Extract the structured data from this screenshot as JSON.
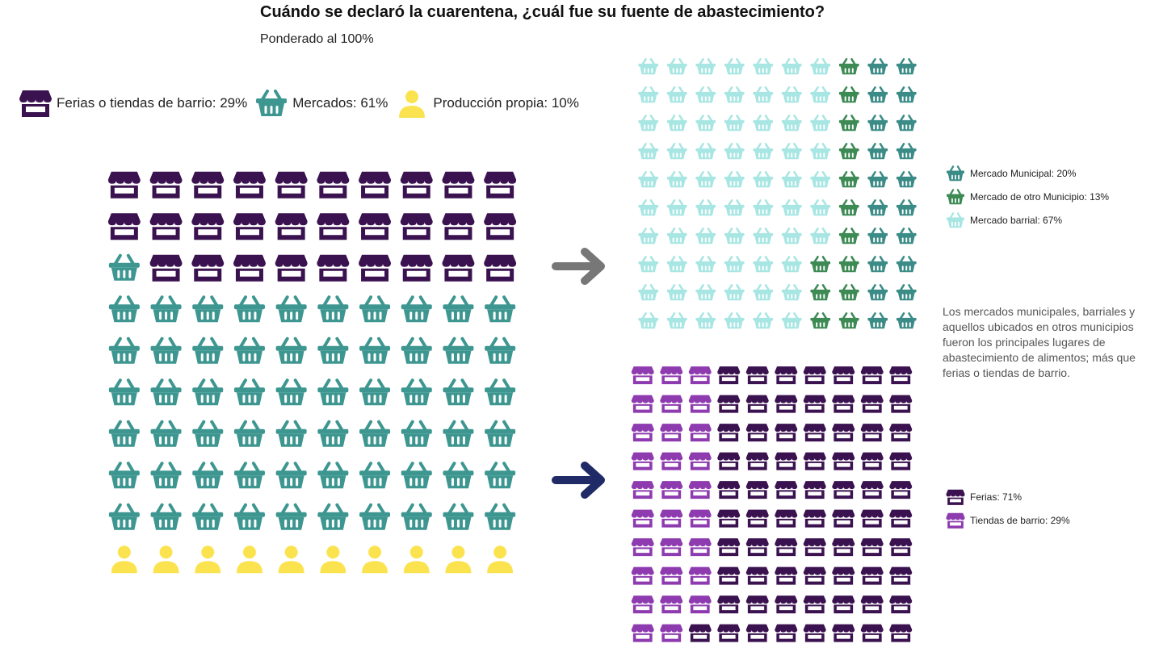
{
  "title": "Cuándo se declaró la cuarentena, ¿cuál fue su fuente de abastecimiento?",
  "subtitle": "Ponderado al 100%",
  "legend": [
    {
      "label": "Ferias o tiendas de barrio: 29%",
      "icon": "store-icon",
      "color": "#3b1250"
    },
    {
      "label": "Mercados: 61%",
      "icon": "basket-icon",
      "color": "#3d9690"
    },
    {
      "label": "Producción propia: 10%",
      "icon": "person-icon",
      "color": "#fbe34f"
    }
  ],
  "note": "Los mercados municipales, barriales y aquellos ubicados en otros municipios fueron los principales lugares de abastecimiento de alimentos; más que ferias o tiendas de barrio.",
  "mercados_legend": [
    {
      "label": "Mercado Municipal: 20%",
      "color": "#3b8c87"
    },
    {
      "label": "Mercado de otro Municipio: 13%",
      "color": "#3d8a55"
    },
    {
      "label": "Mercado barrial: 67%",
      "color": "#a8e6e3"
    }
  ],
  "ferias_legend": [
    {
      "label": "Ferias: 71%",
      "color": "#3b1250"
    },
    {
      "label": "Tiendas de barrio: 29%",
      "color": "#8e3bb0"
    }
  ],
  "arrows": {
    "top_color": "#777777",
    "bottom_color": "#1f2a66"
  },
  "chart_data": [
    {
      "type": "waffle",
      "title": "Cuándo se declaró la cuarentena, ¿cuál fue su fuente de abastecimiento?",
      "subtitle": "Ponderado al 100%",
      "rows": 10,
      "cols": 10,
      "series": [
        {
          "name": "Ferias o tiendas de barrio",
          "value": 29,
          "icon": "store-icon",
          "color": "#3b1250"
        },
        {
          "name": "Mercados",
          "value": 61,
          "icon": "basket-icon",
          "color": "#3d9690"
        },
        {
          "name": "Producción propia",
          "value": 10,
          "icon": "person-icon",
          "color": "#fbe34f"
        }
      ]
    },
    {
      "type": "waffle",
      "rows": 10,
      "cols": 10,
      "series": [
        {
          "name": "Mercado Municipal",
          "value": 20,
          "icon": "basket-icon",
          "color": "#3b8c87"
        },
        {
          "name": "Mercado de otro Municipio",
          "value": 13,
          "icon": "basket-icon",
          "color": "#3d8a55"
        },
        {
          "name": "Mercado barrial",
          "value": 67,
          "icon": "basket-icon",
          "color": "#a8e6e3"
        }
      ]
    },
    {
      "type": "waffle",
      "rows": 10,
      "cols": 10,
      "series": [
        {
          "name": "Ferias",
          "value": 71,
          "icon": "store-icon",
          "color": "#3b1250"
        },
        {
          "name": "Tiendas de barrio",
          "value": 29,
          "icon": "store-icon",
          "color": "#8e3bb0"
        }
      ]
    }
  ]
}
